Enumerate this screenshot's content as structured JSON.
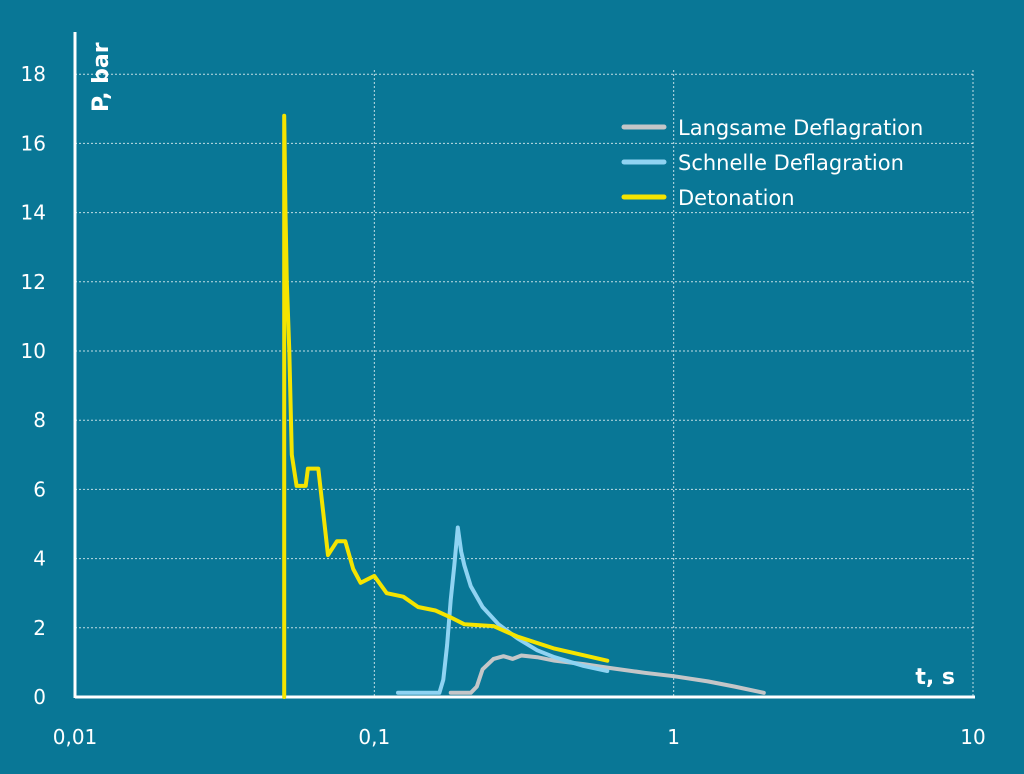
{
  "chart_data": {
    "type": "line",
    "xscale": "log",
    "xlim": [
      0.01,
      10
    ],
    "ylim": [
      0,
      19
    ],
    "grid": true,
    "legend_position": "top-right",
    "xlabel": "t, s",
    "ylabel": "P, bar",
    "x_tick_values": [
      0.01,
      0.1,
      1,
      10
    ],
    "x_tick_labels": [
      "0,01",
      "0,1",
      "1",
      "10"
    ],
    "y_tick_values": [
      0,
      2,
      4,
      6,
      8,
      10,
      12,
      14,
      16,
      18
    ],
    "y_tick_labels": [
      "0",
      "2",
      "4",
      "6",
      "8",
      "10",
      "12",
      "14",
      "16",
      "18"
    ],
    "series": [
      {
        "name": "Langsame Deflagration",
        "color": "#c4c6c8",
        "points": [
          [
            0.18,
            0.12
          ],
          [
            0.21,
            0.12
          ],
          [
            0.22,
            0.3
          ],
          [
            0.23,
            0.8
          ],
          [
            0.25,
            1.1
          ],
          [
            0.27,
            1.18
          ],
          [
            0.29,
            1.1
          ],
          [
            0.31,
            1.2
          ],
          [
            0.35,
            1.15
          ],
          [
            0.4,
            1.05
          ],
          [
            0.5,
            0.95
          ],
          [
            0.6,
            0.85
          ],
          [
            0.8,
            0.7
          ],
          [
            1.0,
            0.6
          ],
          [
            1.3,
            0.45
          ],
          [
            1.6,
            0.3
          ],
          [
            2.0,
            0.12
          ]
        ]
      },
      {
        "name": "Schnelle Deflagration",
        "color": "#8fd3f2",
        "points": [
          [
            0.12,
            0.12
          ],
          [
            0.165,
            0.12
          ],
          [
            0.17,
            0.5
          ],
          [
            0.175,
            1.5
          ],
          [
            0.18,
            2.8
          ],
          [
            0.185,
            3.8
          ],
          [
            0.19,
            4.9
          ],
          [
            0.195,
            4.2
          ],
          [
            0.2,
            3.8
          ],
          [
            0.21,
            3.2
          ],
          [
            0.23,
            2.6
          ],
          [
            0.26,
            2.1
          ],
          [
            0.3,
            1.7
          ],
          [
            0.35,
            1.35
          ],
          [
            0.4,
            1.15
          ],
          [
            0.5,
            0.9
          ],
          [
            0.6,
            0.75
          ]
        ]
      },
      {
        "name": "Detonation",
        "color": "#f5e400",
        "points": [
          [
            0.05,
            0.0
          ],
          [
            0.05,
            16.8
          ],
          [
            0.0505,
            14
          ],
          [
            0.051,
            12
          ],
          [
            0.052,
            10
          ],
          [
            0.053,
            7
          ],
          [
            0.055,
            6.1
          ],
          [
            0.059,
            6.1
          ],
          [
            0.06,
            6.6
          ],
          [
            0.065,
            6.6
          ],
          [
            0.07,
            4.1
          ],
          [
            0.075,
            4.5
          ],
          [
            0.08,
            4.5
          ],
          [
            0.085,
            3.7
          ],
          [
            0.09,
            3.3
          ],
          [
            0.1,
            3.5
          ],
          [
            0.11,
            3.0
          ],
          [
            0.125,
            2.9
          ],
          [
            0.14,
            2.6
          ],
          [
            0.16,
            2.5
          ],
          [
            0.18,
            2.3
          ],
          [
            0.2,
            2.1
          ],
          [
            0.25,
            2.05
          ],
          [
            0.3,
            1.75
          ],
          [
            0.4,
            1.4
          ],
          [
            0.6,
            1.05
          ]
        ]
      }
    ]
  }
}
